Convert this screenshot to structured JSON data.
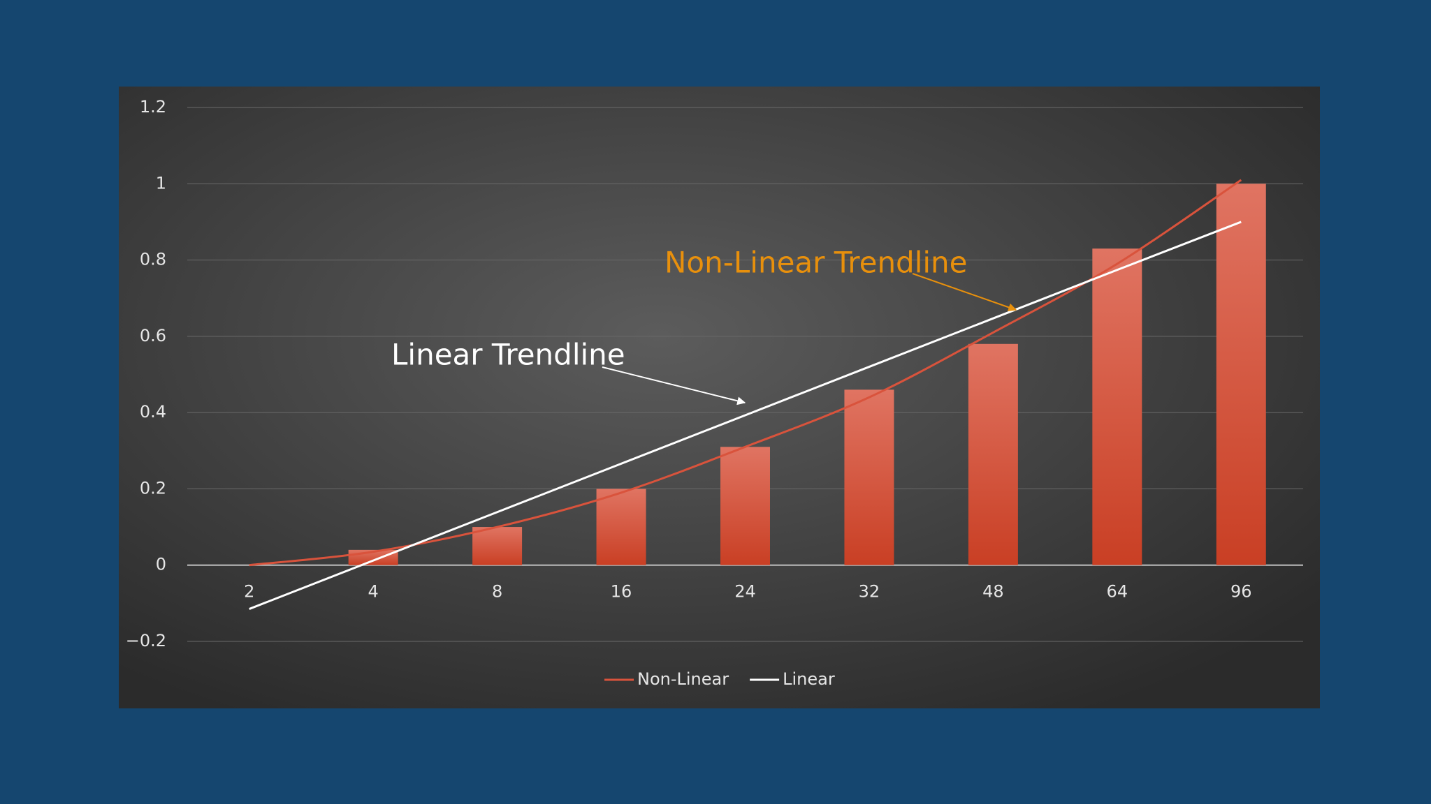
{
  "chart_data": {
    "type": "bar",
    "categories": [
      "2",
      "4",
      "8",
      "16",
      "24",
      "32",
      "48",
      "64",
      "96"
    ],
    "values": [
      0,
      0.04,
      0.1,
      0.2,
      0.31,
      0.46,
      0.58,
      0.83,
      1.0
    ],
    "color": "#d9533c",
    "series": [
      {
        "name": "Non-Linear",
        "color": "#d9533c",
        "values": [
          0,
          0.035,
          0.1,
          0.19,
          0.31,
          0.44,
          0.61,
          0.79,
          1.01
        ]
      },
      {
        "name": "Linear",
        "color": "#ffffff",
        "values": [
          -0.115,
          0.012,
          0.139,
          0.266,
          0.393,
          0.52,
          0.647,
          0.774,
          0.9
        ]
      }
    ],
    "ylim": [
      -0.2,
      1.2
    ],
    "yticks": [
      {
        "value": -0.2,
        "label": "−0.2"
      },
      0,
      0.2,
      0.4,
      0.6,
      0.8,
      1,
      1.2
    ],
    "grid": true,
    "legend": "bottom",
    "annotations": [
      {
        "text": "Non-Linear Trendline",
        "color": "#e8900c"
      },
      {
        "text": "Linear Trendline",
        "color": "#ffffff"
      }
    ]
  }
}
